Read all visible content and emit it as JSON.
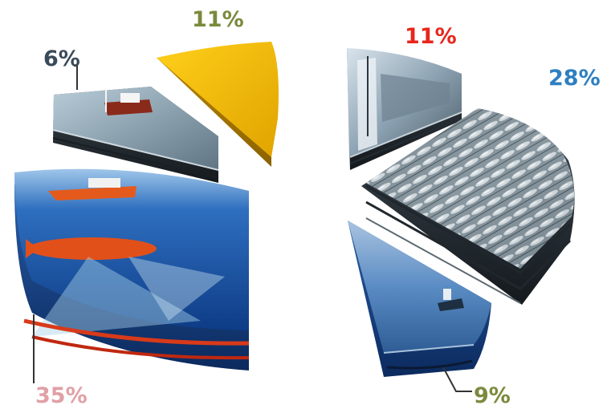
{
  "chart_data": {
    "type": "pie",
    "style": "3d-exploded",
    "title": "",
    "values": [
      11,
      28,
      9,
      35,
      6,
      11
    ],
    "labels": [
      "11%",
      "28%",
      "9%",
      "35%",
      "6%",
      "11%"
    ],
    "slice_pictures": [
      "ship-deck",
      "fish-catch",
      "ship-at-sea",
      "underwater-sonar",
      "research-vessel",
      "plain"
    ],
    "colors": {
      "label_red": "#e8261c",
      "label_blue": "#2e7fc1",
      "label_olive": "#7a8a3c",
      "label_pink": "#e0a0a6",
      "label_slate": "#3b4a5a",
      "slice_gold": "#f2b400"
    }
  }
}
